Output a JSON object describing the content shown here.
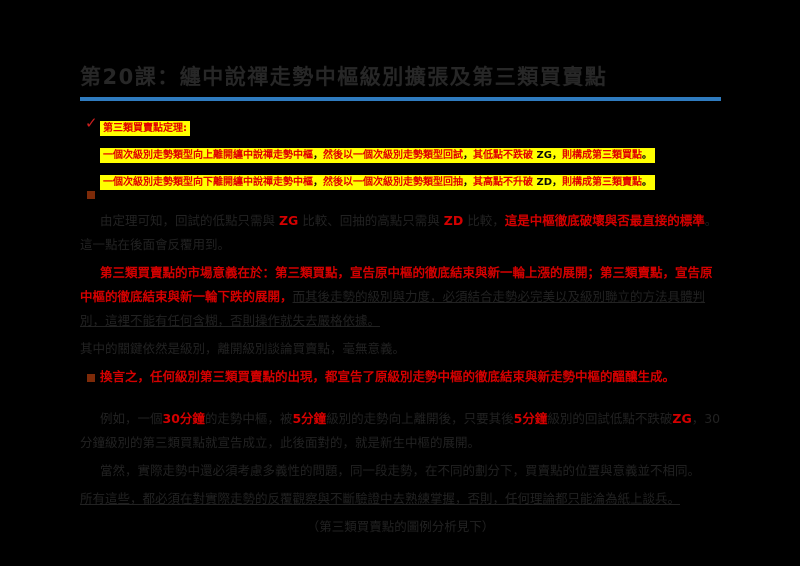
{
  "title": "第20課：纏中說禪走勢中樞級別擴張及第三類買賣點",
  "colors": {
    "divider_blue": "#2f7bbf",
    "highlight_yellow": "#ffff00",
    "emphasis_red": "#d40000",
    "body_dark": "#222222"
  },
  "icons": {
    "check_marker": "✓",
    "square_bullet": "■"
  },
  "theorem": {
    "heading": "第三類買賣點定理:",
    "lines": [
      {
        "runs": [
          {
            "t": "一個次級別走勢類型向上離開纏中說禪走勢中樞",
            "c": "r"
          },
          {
            "t": "，",
            "c": "k"
          },
          {
            "t": "然後以一個次級別走勢類型回試",
            "c": "r"
          },
          {
            "t": "，",
            "c": "k"
          },
          {
            "t": "其低點不跌破 ",
            "c": "r"
          },
          {
            "t": "ZG",
            "c": "rk"
          },
          {
            "t": "，",
            "c": "k"
          },
          {
            "t": "則構成第三類買點",
            "c": "r"
          },
          {
            "t": "。",
            "c": "k"
          }
        ]
      },
      {
        "runs": [
          {
            "t": "一個次級別走勢類型向下離開纏中說禪走勢中樞",
            "c": "r"
          },
          {
            "t": "，",
            "c": "k"
          },
          {
            "t": "然後以一個次級別走勢類型回抽",
            "c": "r"
          },
          {
            "t": "，",
            "c": "k"
          },
          {
            "t": "其高點不升破 ",
            "c": "r"
          },
          {
            "t": "ZD",
            "c": "rk"
          },
          {
            "t": "，",
            "c": "k"
          },
          {
            "t": "則構成第三類賣點",
            "c": "r"
          },
          {
            "t": "。",
            "c": "k"
          }
        ]
      }
    ]
  },
  "body": {
    "para_a": {
      "runs": [
        {
          "t": "由定理可知，回試的低點只需與 ",
          "c": "d"
        },
        {
          "t": "ZG",
          "c": "r"
        },
        {
          "t": " 比較、回抽的高點只需與 ",
          "c": "d"
        },
        {
          "t": "ZD",
          "c": "r"
        },
        {
          "t": " 比較，",
          "c": "d"
        },
        {
          "t": "這是中樞徹底破壞與否最直接的標準",
          "c": "r"
        },
        {
          "t": "。這一點在後面會反覆用到。",
          "c": "d"
        }
      ]
    },
    "para_b": {
      "runs": [
        {
          "t": "第三類買賣點的市場意義在於：第三類買點，宣告原中樞的徹底結束與新一輪上漲的展開；第三類賣點，宣告原中樞的徹底結束與新一輪下跌的展開，",
          "c": "r"
        },
        {
          "t": "而其後走勢的級別與力度，必須結合走勢必完美以及級別聯立的方法具體判別，這裡不能有任何含糊，否則操作就失去嚴格依據。",
          "c": "du"
        }
      ]
    },
    "para_c1": {
      "runs": [
        {
          "t": "其中的關鍵依然是級別，離開級別談論買賣點，毫無意義。",
          "c": "d"
        }
      ]
    },
    "para_c2": {
      "runs": [
        {
          "t": "換言之，任何級別第三類買賣點的出現，都宣告了原級別走勢中樞的徹底結束與新走勢中樞的醞釀生成。",
          "c": "r"
        }
      ]
    },
    "para_d": {
      "runs": [
        {
          "t": "例如，一個",
          "c": "d"
        },
        {
          "t": "30分鐘",
          "c": "r"
        },
        {
          "t": "的走勢中樞，被",
          "c": "d"
        },
        {
          "t": "5分鐘",
          "c": "r"
        },
        {
          "t": "級別的走勢向上離開後，只要其後",
          "c": "d"
        },
        {
          "t": "5分鐘",
          "c": "r"
        },
        {
          "t": "級別的回試低點不跌破",
          "c": "d"
        },
        {
          "t": "ZG",
          "c": "r"
        },
        {
          "t": "，30分鐘級別的第三類買點就宣告成立，此後面對的，就是新生中樞的展開。",
          "c": "d"
        }
      ]
    },
    "para_e": {
      "runs": [
        {
          "t": "當然，實際走勢中還必須考慮多義性的問題，同一段走勢，在不同的劃分下，買賣點的位置與意義並不相同。",
          "c": "d"
        }
      ]
    },
    "para_f": {
      "runs": [
        {
          "t": "所有這些，都必須在對實際走勢的反覆觀察與不斷驗證中去熟練掌握，否則，任何理論都只能淪為紙上談兵。",
          "c": "du"
        }
      ]
    },
    "caption": "（第三類買賣點的圖例分析見下）"
  }
}
